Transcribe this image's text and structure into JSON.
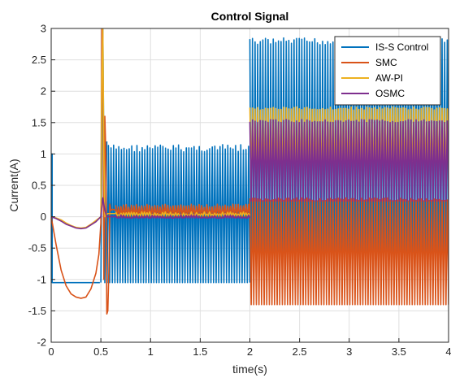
{
  "chart_data": {
    "type": "line",
    "title": "Control Signal",
    "xlabel": "time(s)",
    "ylabel": "Current(A)",
    "xlim": [
      0,
      4
    ],
    "ylim": [
      -2,
      3
    ],
    "xticks": [
      "0",
      "0.5",
      "1",
      "1.5",
      "2",
      "2.5",
      "3",
      "3.5",
      "4"
    ],
    "yticks": [
      "-2",
      "-1.5",
      "-1",
      "-0.5",
      "0",
      "0.5",
      "1",
      "1.5",
      "2",
      "2.5",
      "3"
    ],
    "grid": true,
    "legend_position": "top-right",
    "series": [
      {
        "name": "IS-S Control",
        "color": "#0072BD",
        "segments": [
          {
            "x": [
              0,
              0.01,
              0.01,
              0.49
            ],
            "y": [
              1.0,
              1.0,
              -1.05,
              -1.05
            ]
          },
          {
            "x": [
              0.5,
              0.52,
              0.54,
              0.56
            ],
            "y": [
              -1.05,
              3.0,
              -1.05,
              1.2
            ]
          }
        ],
        "oscillation_bands": [
          {
            "x": [
              0.55,
              2.0
            ],
            "y": [
              -1.05,
              1.15
            ]
          },
          {
            "x": [
              2.0,
              4.0
            ],
            "y": [
              -1.05,
              2.85
            ]
          }
        ]
      },
      {
        "name": "SMC",
        "color": "#D95319",
        "x": [
          0,
          0.05,
          0.1,
          0.15,
          0.2,
          0.25,
          0.3,
          0.35,
          0.4,
          0.45,
          0.48,
          0.5,
          0.51,
          0.52,
          0.53,
          0.54,
          0.55,
          0.56,
          0.57,
          0.58,
          0.59,
          0.6,
          0.62,
          0.65
        ],
        "y": [
          0,
          -0.45,
          -0.85,
          -1.1,
          -1.23,
          -1.28,
          -1.3,
          -1.28,
          -1.15,
          -0.9,
          -0.6,
          -0.1,
          3.0,
          2.9,
          -1.0,
          1.6,
          1.0,
          -1.55,
          -1.5,
          -0.9,
          0.2,
          0.1,
          0.12,
          0.1
        ],
        "oscillation_bands": [
          {
            "x": [
              0.65,
              2.0
            ],
            "y": [
              0.0,
              0.2
            ]
          },
          {
            "x": [
              2.0,
              4.0
            ],
            "y": [
              -1.4,
              0.3
            ]
          }
        ]
      },
      {
        "name": "AW-PI",
        "color": "#EDB120",
        "x": [
          0,
          0.05,
          0.1,
          0.15,
          0.2,
          0.25,
          0.3,
          0.35,
          0.4,
          0.45,
          0.5,
          0.51,
          0.52,
          0.53,
          0.54,
          0.55,
          0.57,
          0.6,
          0.65
        ],
        "y": [
          0,
          -0.02,
          -0.05,
          -0.1,
          -0.14,
          -0.17,
          -0.18,
          -0.17,
          -0.12,
          -0.06,
          0.0,
          2.2,
          3.0,
          1.0,
          0.0,
          0.02,
          0.05,
          0.05,
          0.05
        ],
        "oscillation_bands": [
          {
            "x": [
              0.65,
              2.0
            ],
            "y": [
              0.02,
              0.08
            ]
          },
          {
            "x": [
              2.0,
              4.0
            ],
            "y": [
              0.6,
              1.75
            ]
          }
        ]
      },
      {
        "name": "OSMC",
        "color": "#7E2F8E",
        "x": [
          0,
          0.05,
          0.1,
          0.15,
          0.2,
          0.25,
          0.3,
          0.35,
          0.4,
          0.45,
          0.5,
          0.52,
          0.54,
          0.56,
          0.6,
          0.65
        ],
        "y": [
          0,
          -0.03,
          -0.07,
          -0.12,
          -0.15,
          -0.18,
          -0.19,
          -0.18,
          -0.13,
          -0.08,
          0.0,
          0.3,
          0.1,
          0.0,
          0.0,
          0.0
        ],
        "oscillation_bands": [
          {
            "x": [
              0.65,
              2.0
            ],
            "y": [
              -0.02,
              0.03
            ]
          },
          {
            "x": [
              2.0,
              4.0
            ],
            "y": [
              0.25,
              1.55
            ]
          }
        ]
      }
    ]
  }
}
